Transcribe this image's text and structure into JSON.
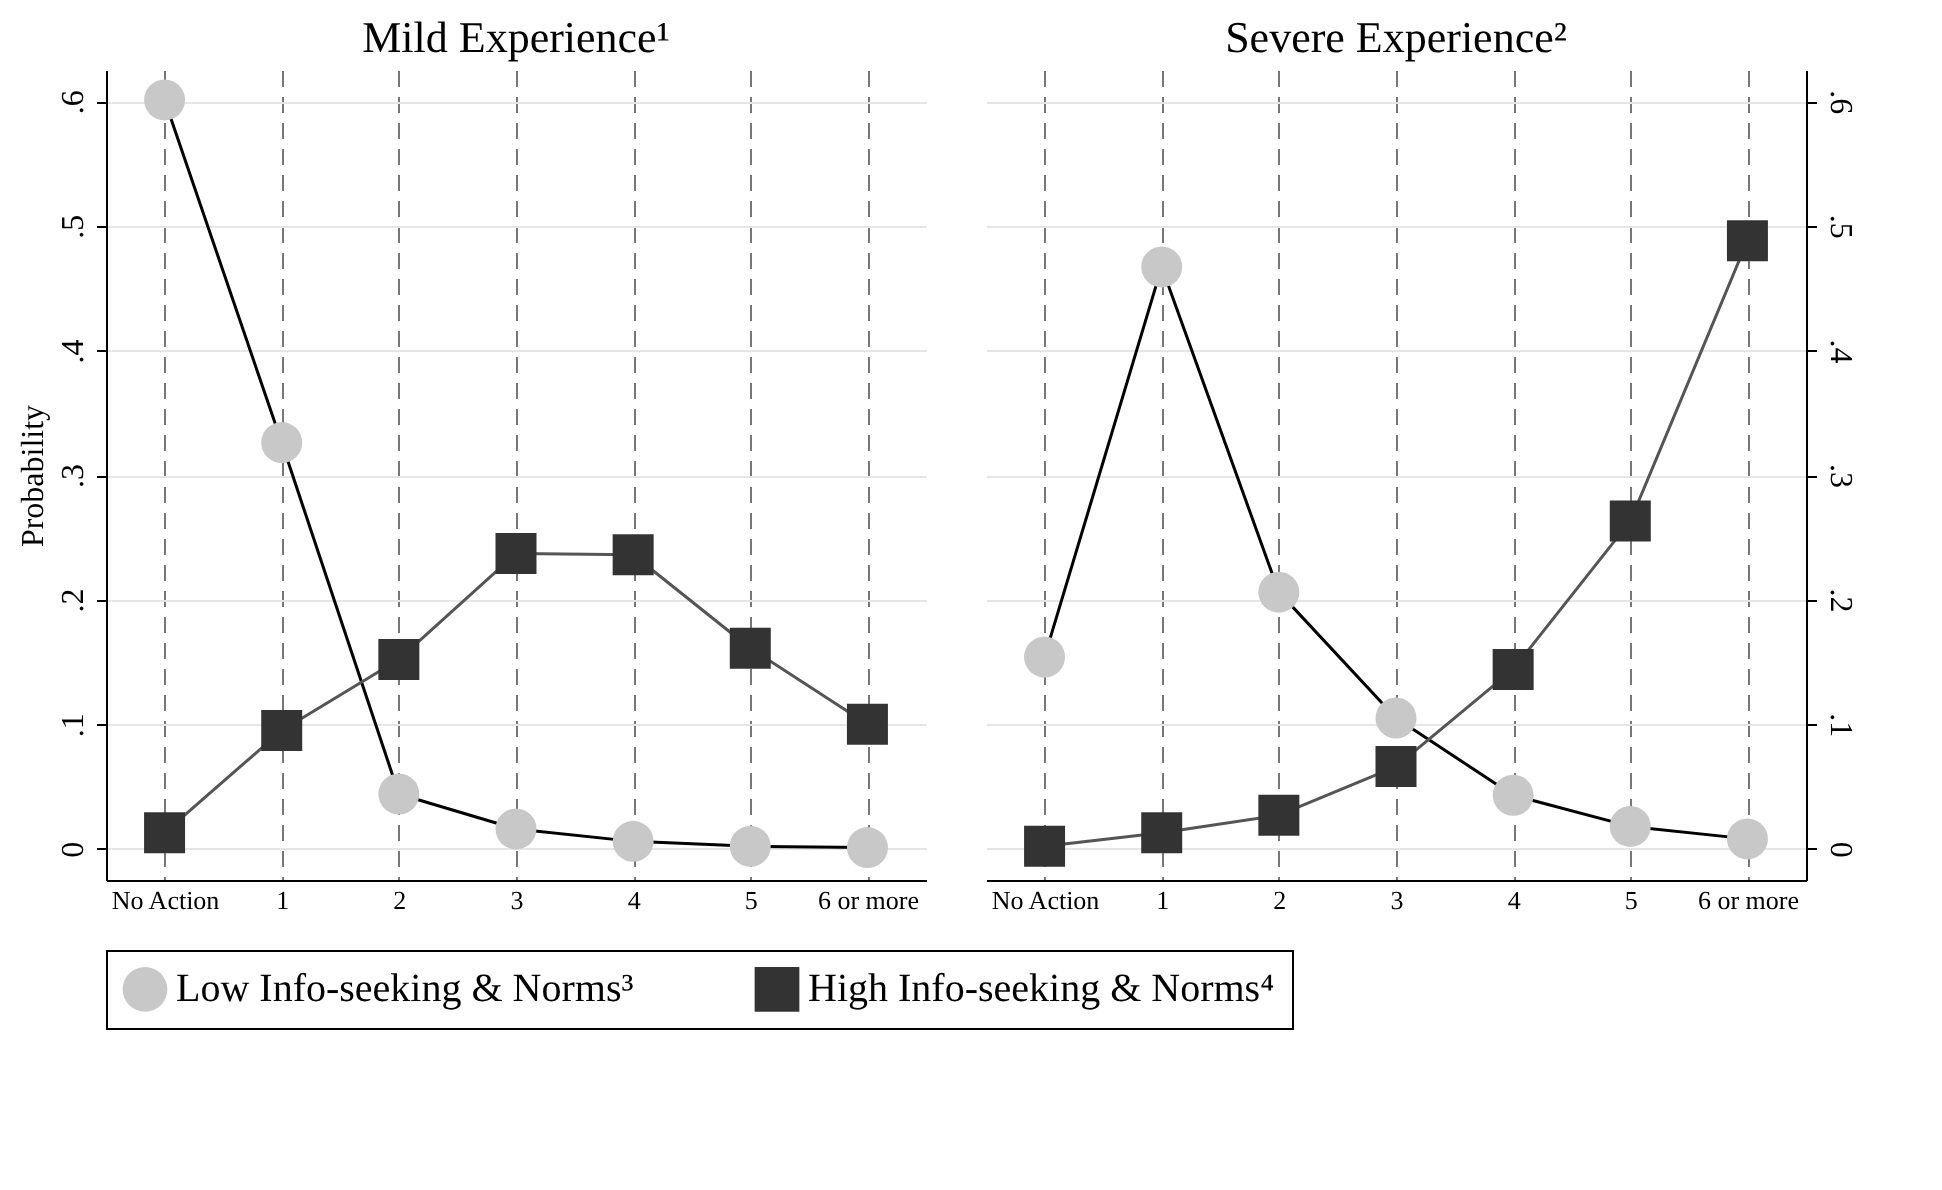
{
  "chart_data": [
    {
      "type": "line",
      "title": "Mild Experience¹",
      "ylabel": "Probability",
      "categories": [
        "No Action",
        "1",
        "2",
        "3",
        "4",
        "5",
        "6 or more"
      ],
      "series": [
        {
          "name": "Low Info-seeking & Norms³",
          "color": "#c8c8c8",
          "marker": "circle",
          "values": [
            0.601,
            0.326,
            0.044,
            0.016,
            0.006,
            0.002,
            0.001
          ]
        },
        {
          "name": "High Info-seeking & Norms⁴",
          "color": "#333333",
          "marker": "square",
          "values": [
            0.013,
            0.095,
            0.152,
            0.237,
            0.236,
            0.161,
            0.1
          ]
        }
      ],
      "ylim": [
        -0.025,
        0.625
      ],
      "yticks": [
        0,
        {
          "value": 0.1,
          "label": ".1"
        },
        {
          "value": 0.2,
          "label": ".2"
        },
        {
          "value": 0.3,
          "label": ".3"
        },
        {
          "value": 0.4,
          "label": ".4"
        },
        {
          "value": 0.5,
          "label": ".5"
        },
        {
          "value": 0.6,
          "label": ".6"
        }
      ],
      "grid": true,
      "legend": "bottom"
    },
    {
      "type": "line",
      "title": "Severe Experience²",
      "categories": [
        "No Action",
        "1",
        "2",
        "3",
        "4",
        "5",
        "6 or more"
      ],
      "series": [
        {
          "name": "Low Info-seeking & Norms³",
          "color": "#c8c8c8",
          "marker": "circle",
          "axis": "y2",
          "values": [
            0.154,
            0.467,
            0.206,
            0.105,
            0.043,
            0.018,
            0.008
          ]
        },
        {
          "name": "High Info-seeking & Norms⁴",
          "color": "#333333",
          "marker": "square",
          "axis": "y2",
          "values": [
            0.002,
            0.013,
            0.027,
            0.066,
            0.144,
            0.263,
            0.488
          ]
        }
      ],
      "y2lim": [
        -0.025,
        0.625
      ],
      "y2ticks": [
        0,
        {
          "value": 0.1,
          "label": ".1"
        },
        {
          "value": 0.2,
          "label": ".2"
        },
        {
          "value": 0.3,
          "label": ".3"
        },
        {
          "value": 0.4,
          "label": ".4"
        },
        {
          "value": 0.5,
          "label": ".5"
        },
        {
          "value": 0.6,
          "label": ".6"
        }
      ],
      "grid": true,
      "legend": "bottom"
    }
  ]
}
